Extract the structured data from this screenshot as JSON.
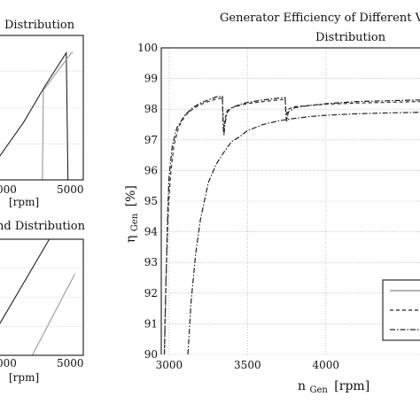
{
  "chart_data": [
    {
      "type": "line",
      "title": "Distribution",
      "xlabel": "[rpm]",
      "x_ticks": [
        "000",
        "5000"
      ],
      "grid": true,
      "series": [
        {
          "name": "",
          "style": "solid-dark",
          "x": [
            0.0,
            0.3,
            0.55,
            0.8,
            0.82
          ],
          "y": [
            0.15,
            0.4,
            0.65,
            0.88,
            0.0
          ]
        },
        {
          "name": "",
          "style": "solid-light",
          "x": [
            0.0,
            0.52,
            0.53,
            0.86,
            0.88
          ],
          "y": [
            0.0,
            0.0,
            0.62,
            0.88,
            0.88
          ]
        }
      ]
    },
    {
      "type": "line",
      "title": "nd Distribution",
      "xlabel": "[rpm]",
      "x_ticks": [
        "000",
        "5000"
      ],
      "grid": true,
      "series": [
        {
          "name": "",
          "style": "solid-dark",
          "x": [
            0.0,
            0.6
          ],
          "y": [
            0.25,
            1.0
          ]
        },
        {
          "name": "",
          "style": "solid-light",
          "x": [
            0.4,
            0.9
          ],
          "y": [
            0.0,
            0.7
          ]
        }
      ]
    },
    {
      "type": "line",
      "title": "Generator Efficiency of Different Va",
      "subtitle": "Distribution",
      "xlabel": "n",
      "xlabel_sub": "Gen",
      "xlabel_unit": "[rpm]",
      "ylabel": "η",
      "ylabel_sub": "Gen",
      "ylabel_unit": "[%]",
      "xlim": [
        2950,
        4600
      ],
      "ylim": [
        90,
        100
      ],
      "x_ticks": [
        3000,
        3500,
        4000
      ],
      "y_ticks": [
        90,
        91,
        92,
        93,
        94,
        95,
        96,
        97,
        98,
        99,
        100
      ],
      "grid": true,
      "series": [
        {
          "name": "",
          "style": "dashdot",
          "x": [
            2970,
            2978,
            2990,
            3000,
            3020,
            3050,
            3100,
            3150,
            3200,
            3250,
            3300,
            3340,
            3345,
            3350,
            3355,
            3370,
            3400,
            3450,
            3500,
            3600,
            3700,
            3740,
            3745,
            3750,
            3760,
            3800,
            3900,
            4000,
            4200,
            4600
          ],
          "y": [
            90,
            92.0,
            94.5,
            95.8,
            96.8,
            97.4,
            97.8,
            98.05,
            98.2,
            98.3,
            98.4,
            98.42,
            97.4,
            97.15,
            97.5,
            97.9,
            98.05,
            98.15,
            98.22,
            98.3,
            98.36,
            98.38,
            97.8,
            97.6,
            97.9,
            98.05,
            98.12,
            98.18,
            98.25,
            98.3
          ]
        },
        {
          "name": "",
          "style": "dashed",
          "x": [
            2970,
            2980,
            2995,
            3010,
            3030,
            3060,
            3100,
            3150,
            3200,
            3250,
            3300,
            3340,
            3345,
            3350,
            3355,
            3370,
            3400,
            3450,
            3500,
            3600,
            3700,
            3740,
            3745,
            3750,
            3760,
            3800,
            3900,
            4000,
            4200,
            4600
          ],
          "y": [
            90,
            92.4,
            94.8,
            95.9,
            96.8,
            97.4,
            97.78,
            98.0,
            98.15,
            98.25,
            98.33,
            98.36,
            97.6,
            97.4,
            97.65,
            97.95,
            98.05,
            98.12,
            98.18,
            98.25,
            98.3,
            98.32,
            97.95,
            97.85,
            98.0,
            98.08,
            98.12,
            98.16,
            98.2,
            98.25
          ]
        },
        {
          "name": "",
          "style": "dashdot-thin",
          "x": [
            3120,
            3140,
            3170,
            3200,
            3250,
            3300,
            3350,
            3400,
            3450,
            3500,
            3600,
            3700,
            3800,
            3900,
            4000,
            4200,
            4400,
            4600
          ],
          "y": [
            90,
            91.7,
            93.3,
            94.4,
            95.6,
            96.2,
            96.6,
            96.95,
            97.1,
            97.3,
            97.5,
            97.62,
            97.7,
            97.76,
            97.8,
            97.85,
            97.88,
            97.9
          ]
        }
      ],
      "legend": {
        "placement": "lower-right",
        "entries": 3
      }
    }
  ]
}
